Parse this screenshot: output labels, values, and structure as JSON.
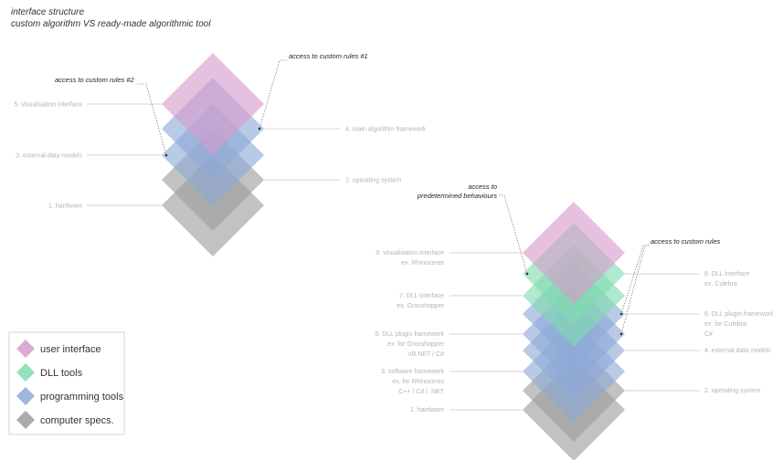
{
  "title": {
    "line1": "interface structure",
    "line2": "custom algorithm VS ready-made algorithmic tool"
  },
  "colors": {
    "user_interface": "#d79bcc",
    "dll_tools": "#7fdcaf",
    "programming_tools": "#8ea9d8",
    "computer_specs": "#9c9c9c"
  },
  "left_stack": {
    "labels": {
      "visualisation": "5. visualisation interface",
      "main_framework": "4. main algorithm framework",
      "external_data": "3. external data models",
      "operating_system": "2. operating system",
      "hardware": "1. hardware"
    },
    "access_rules_1": "access to custom rules #1",
    "access_rules_2": "access to custom rules #2"
  },
  "right_stack": {
    "labels": {
      "vis_1": "9. visualisation interface",
      "vis_2": "ex. Rhinoceros",
      "dll_interface_1": "8. DLL interface",
      "dll_interface_2": "ex. Culebra",
      "dll_interface7_1": "7. DLL interface",
      "dll_interface7_2": "ex. Grasshopper",
      "dll_plugin6_1": "6. DLL plugin framework",
      "dll_plugin6_2": "ex. for Culebra",
      "dll_plugin6_3": "C#",
      "dll_plugin5_1": "5. DLL plugin framework",
      "dll_plugin5_2": "ex. for Grasshopper",
      "dll_plugin5_3": "VB.NET / C#",
      "external_data": "4. external data models",
      "software_1": "3. software framework",
      "software_2": "ex. for Rhinoceros",
      "software_3": "C++ / C# / .NET",
      "operating_system": "2. operating system",
      "hardware": "1. hardware"
    },
    "access_behaviours_1": "access to",
    "access_behaviours_2": "predetermined behaviours",
    "access_custom": "access to custom rules"
  },
  "legend": [
    {
      "label": "user interface",
      "color_key": "user_interface"
    },
    {
      "label": "DLL tools",
      "color_key": "dll_tools"
    },
    {
      "label": "programming tools",
      "color_key": "programming_tools"
    },
    {
      "label": "computer specs.",
      "color_key": "computer_specs"
    }
  ]
}
